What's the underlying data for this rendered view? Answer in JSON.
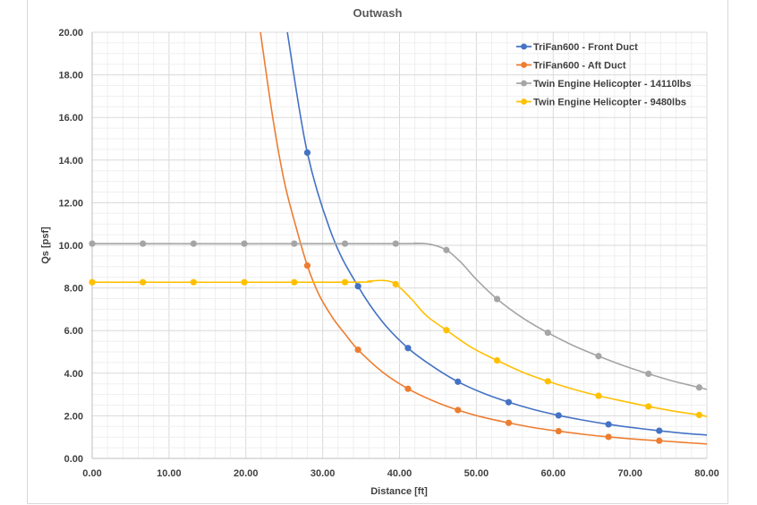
{
  "chart_data": {
    "type": "scatter",
    "title": "Outwash",
    "xlabel": "Distance [ft]",
    "ylabel": "Qs [psf]",
    "xlim": [
      0,
      80
    ],
    "ylim": [
      0,
      20
    ],
    "x_ticks": [
      "0.00",
      "10.00",
      "20.00",
      "30.00",
      "40.00",
      "50.00",
      "60.00",
      "70.00",
      "80.00"
    ],
    "y_ticks": [
      "0.00",
      "2.00",
      "4.00",
      "6.00",
      "8.00",
      "10.00",
      "12.00",
      "14.00",
      "16.00",
      "18.00",
      "20.00"
    ],
    "grid": true,
    "legend_position": "top-right",
    "series": [
      {
        "name": "TriFan600 - Front Duct",
        "color": "#4472c4",
        "markers": [
          [
            28.0,
            14.35
          ],
          [
            34.6,
            8.08
          ],
          [
            41.1,
            5.18
          ],
          [
            47.6,
            3.6
          ],
          [
            54.2,
            2.64
          ],
          [
            60.7,
            2.02
          ],
          [
            67.2,
            1.6
          ],
          [
            73.8,
            1.3
          ]
        ],
        "curve": [
          [
            25.4,
            20.0
          ],
          [
            28.0,
            14.35
          ],
          [
            31.3,
            10.4
          ],
          [
            34.6,
            8.08
          ],
          [
            37.8,
            6.4
          ],
          [
            41.1,
            5.18
          ],
          [
            44.4,
            4.3
          ],
          [
            47.6,
            3.6
          ],
          [
            50.9,
            3.06
          ],
          [
            54.2,
            2.64
          ],
          [
            57.4,
            2.3
          ],
          [
            60.7,
            2.02
          ],
          [
            64.0,
            1.79
          ],
          [
            67.2,
            1.6
          ],
          [
            70.5,
            1.44
          ],
          [
            73.8,
            1.3
          ],
          [
            77.0,
            1.18
          ],
          [
            80.0,
            1.1
          ]
        ]
      },
      {
        "name": "TriFan600 - Aft Duct",
        "color": "#ed7d31",
        "markers": [
          [
            28.0,
            9.05
          ],
          [
            34.6,
            5.1
          ],
          [
            41.1,
            3.27
          ],
          [
            47.6,
            2.27
          ],
          [
            54.2,
            1.67
          ],
          [
            60.7,
            1.28
          ],
          [
            67.2,
            1.01
          ],
          [
            73.8,
            0.83
          ]
        ],
        "curve": [
          [
            21.9,
            20.0
          ],
          [
            23.5,
            16.0
          ],
          [
            25.0,
            13.0
          ],
          [
            26.5,
            10.9
          ],
          [
            28.0,
            9.05
          ],
          [
            29.5,
            7.7
          ],
          [
            31.3,
            6.6
          ],
          [
            33.0,
            5.8
          ],
          [
            34.6,
            5.1
          ],
          [
            37.8,
            4.05
          ],
          [
            41.1,
            3.27
          ],
          [
            44.4,
            2.7
          ],
          [
            47.6,
            2.27
          ],
          [
            50.9,
            1.93
          ],
          [
            54.2,
            1.67
          ],
          [
            57.4,
            1.45
          ],
          [
            60.7,
            1.28
          ],
          [
            64.0,
            1.13
          ],
          [
            67.2,
            1.01
          ],
          [
            70.5,
            0.91
          ],
          [
            73.8,
            0.83
          ],
          [
            77.0,
            0.75
          ],
          [
            80.0,
            0.68
          ]
        ]
      },
      {
        "name": "Twin Engine Helicopter - 14110lbs",
        "color": "#a5a5a5",
        "markers": [
          [
            0.0,
            10.08
          ],
          [
            6.6,
            10.08
          ],
          [
            13.2,
            10.08
          ],
          [
            19.8,
            10.08
          ],
          [
            26.3,
            10.08
          ],
          [
            32.9,
            10.08
          ],
          [
            39.5,
            10.08
          ],
          [
            46.1,
            9.78
          ],
          [
            52.7,
            7.48
          ],
          [
            59.3,
            5.9
          ],
          [
            65.9,
            4.8
          ],
          [
            72.4,
            3.97
          ],
          [
            79.0,
            3.33
          ]
        ],
        "curve": [
          [
            0.0,
            10.08
          ],
          [
            39.5,
            10.08
          ],
          [
            42.0,
            10.1
          ],
          [
            44.0,
            10.05
          ],
          [
            46.1,
            9.78
          ],
          [
            48.0,
            9.2
          ],
          [
            50.0,
            8.4
          ],
          [
            52.7,
            7.48
          ],
          [
            56.0,
            6.6
          ],
          [
            59.3,
            5.9
          ],
          [
            62.6,
            5.3
          ],
          [
            65.9,
            4.8
          ],
          [
            69.2,
            4.35
          ],
          [
            72.4,
            3.97
          ],
          [
            75.7,
            3.62
          ],
          [
            79.0,
            3.33
          ],
          [
            80.0,
            3.24
          ]
        ]
      },
      {
        "name": "Twin Engine Helicopter - 9480lbs",
        "color": "#ffc000",
        "markers": [
          [
            0.0,
            8.27
          ],
          [
            6.6,
            8.27
          ],
          [
            13.2,
            8.27
          ],
          [
            19.8,
            8.27
          ],
          [
            26.3,
            8.27
          ],
          [
            32.9,
            8.27
          ],
          [
            39.5,
            8.18
          ],
          [
            46.1,
            6.02
          ],
          [
            52.7,
            4.6
          ],
          [
            59.3,
            3.62
          ],
          [
            65.9,
            2.94
          ],
          [
            72.4,
            2.44
          ],
          [
            79.0,
            2.04
          ]
        ],
        "curve": [
          [
            0.0,
            8.27
          ],
          [
            32.9,
            8.27
          ],
          [
            36.0,
            8.32
          ],
          [
            38.0,
            8.35
          ],
          [
            39.5,
            8.18
          ],
          [
            41.5,
            7.5
          ],
          [
            43.5,
            6.7
          ],
          [
            46.1,
            6.02
          ],
          [
            49.4,
            5.2
          ],
          [
            52.7,
            4.6
          ],
          [
            56.0,
            4.05
          ],
          [
            59.3,
            3.62
          ],
          [
            62.6,
            3.25
          ],
          [
            65.9,
            2.94
          ],
          [
            69.2,
            2.68
          ],
          [
            72.4,
            2.44
          ],
          [
            75.7,
            2.22
          ],
          [
            79.0,
            2.04
          ],
          [
            80.0,
            1.97
          ]
        ]
      }
    ]
  }
}
